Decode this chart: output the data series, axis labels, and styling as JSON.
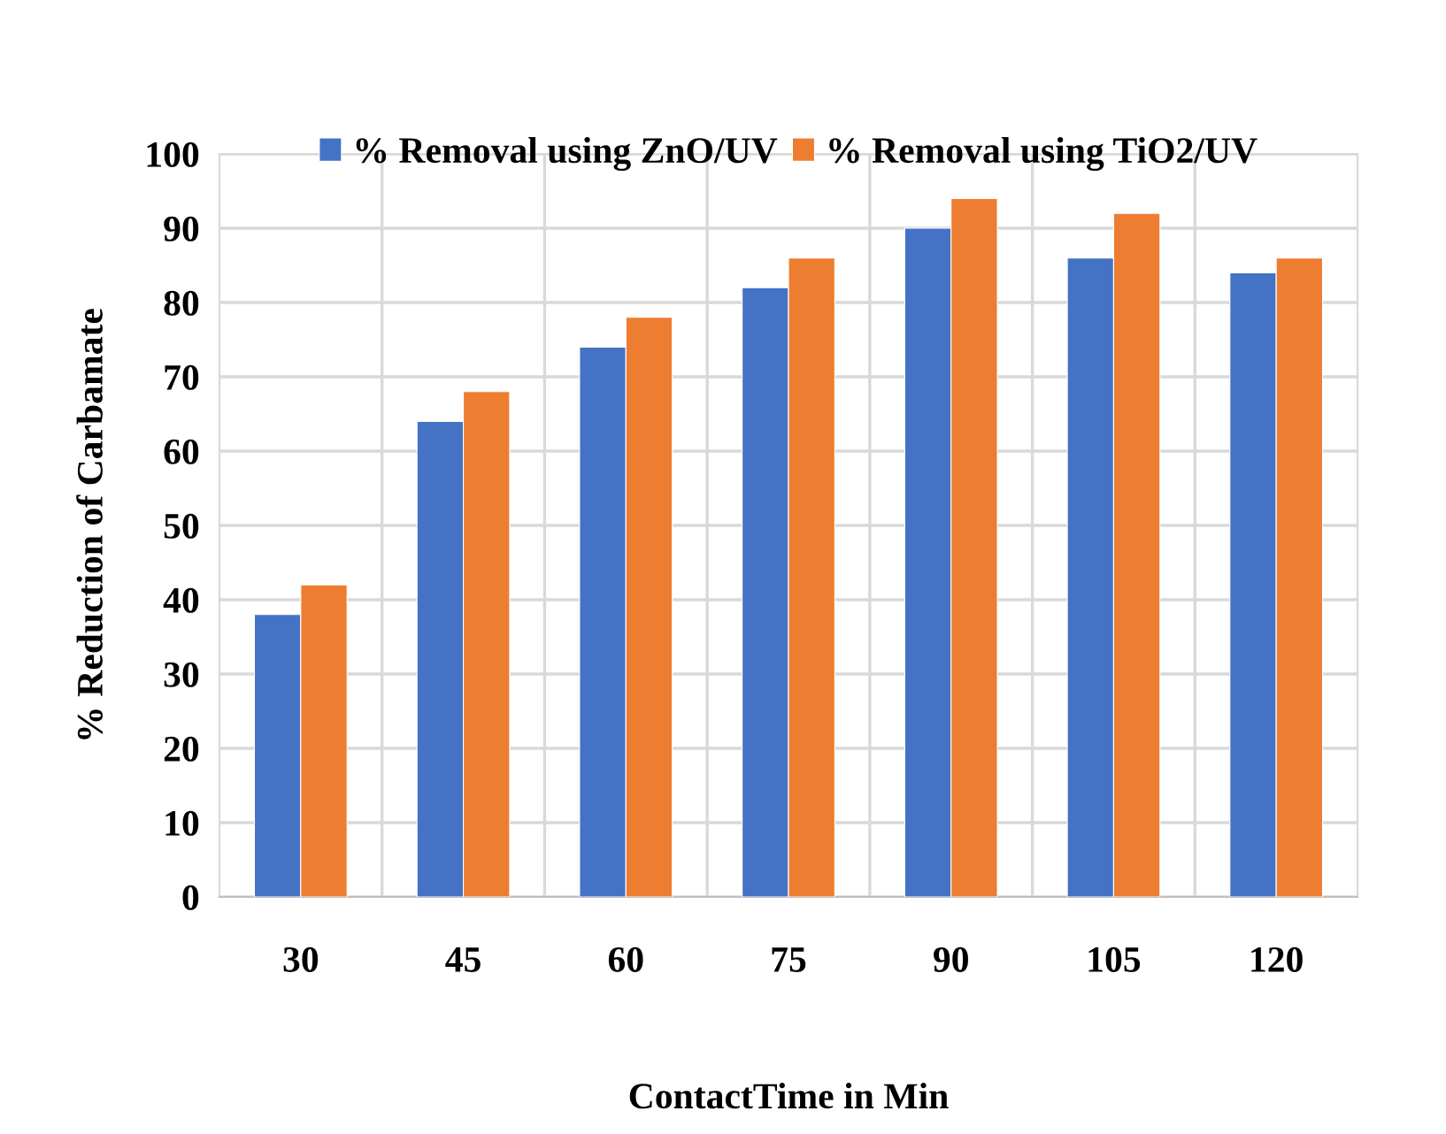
{
  "chart_data": {
    "type": "bar",
    "xlabel": "ContactTime in Min",
    "ylabel": "% Reduction of Carbamate",
    "categories": [
      "30",
      "45",
      "60",
      "75",
      "90",
      "105",
      "120"
    ],
    "series": [
      {
        "name": "% Removal using ZnO/UV",
        "color": "#4472c4",
        "values": [
          38,
          64,
          74,
          82,
          90,
          86,
          84
        ]
      },
      {
        "name": "% Removal using TiO2/UV",
        "color": "#ed7d31",
        "values": [
          42,
          68,
          78,
          86,
          94,
          92,
          86
        ]
      }
    ],
    "ylim": [
      0,
      100
    ],
    "yticks": [
      0,
      10,
      20,
      30,
      40,
      50,
      60,
      70,
      80,
      90,
      100
    ],
    "grid": true,
    "legend": "top"
  }
}
